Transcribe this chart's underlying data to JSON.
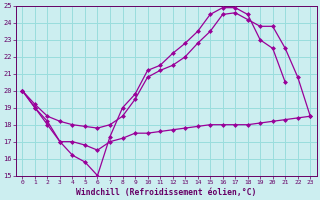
{
  "background_color": "#cceef0",
  "grid_color": "#99dddd",
  "line_color": "#990099",
  "xlabel": "Windchill (Refroidissement éolien,°C)",
  "xlabel_color": "#660066",
  "tick_color": "#660066",
  "xlim": [
    -0.5,
    23.5
  ],
  "ylim": [
    15,
    25
  ],
  "yticks": [
    15,
    16,
    17,
    18,
    19,
    20,
    21,
    22,
    23,
    24,
    25
  ],
  "xticks": [
    0,
    1,
    2,
    3,
    4,
    5,
    6,
    7,
    8,
    9,
    10,
    11,
    12,
    13,
    14,
    15,
    16,
    17,
    18,
    19,
    20,
    21,
    22,
    23
  ],
  "line1_x": [
    0,
    1,
    2,
    3,
    4,
    5,
    6,
    7,
    8,
    9,
    10,
    11,
    12,
    13,
    14,
    15,
    16,
    17,
    18,
    19,
    20,
    21
  ],
  "line1_y": [
    20.0,
    19.0,
    18.2,
    17.0,
    16.2,
    15.8,
    15.0,
    17.3,
    19.0,
    19.8,
    21.2,
    21.5,
    22.2,
    22.8,
    23.5,
    24.5,
    24.9,
    24.9,
    24.5,
    23.0,
    22.5,
    20.5
  ],
  "line2_x": [
    0,
    1,
    2,
    3,
    4,
    5,
    6,
    7,
    8,
    9,
    10,
    11,
    12,
    13,
    14,
    15,
    16,
    17,
    18,
    19,
    20,
    21,
    22,
    23
  ],
  "line2_y": [
    20.0,
    19.0,
    18.0,
    17.0,
    17.0,
    16.8,
    16.5,
    17.0,
    17.2,
    17.5,
    17.5,
    17.6,
    17.7,
    17.8,
    17.9,
    18.0,
    18.0,
    18.0,
    18.0,
    18.1,
    18.2,
    18.3,
    18.4,
    18.5
  ],
  "line3_x": [
    0,
    1,
    2,
    3,
    4,
    5,
    6,
    7,
    8,
    9,
    10,
    11,
    12,
    13,
    14,
    15,
    16,
    17,
    18,
    19,
    20,
    21,
    22,
    23
  ],
  "line3_y": [
    20.0,
    19.2,
    18.5,
    18.2,
    18.0,
    17.9,
    17.8,
    18.0,
    18.5,
    19.5,
    20.8,
    21.2,
    21.5,
    22.0,
    22.8,
    23.5,
    24.5,
    24.6,
    24.2,
    23.8,
    23.8,
    22.5,
    20.8,
    18.5
  ]
}
